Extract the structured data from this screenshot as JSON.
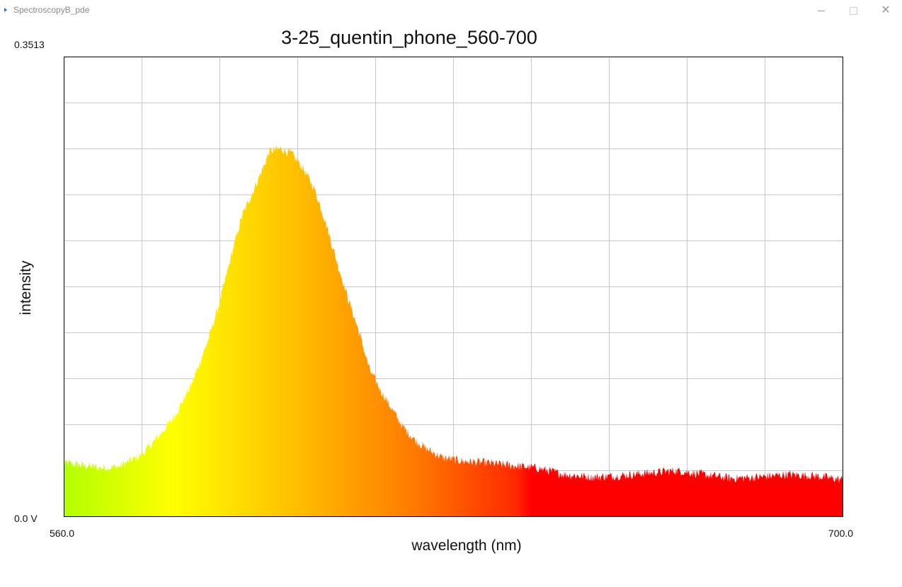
{
  "window": {
    "title": "SpectroscopyB_pde",
    "minimize_glyph": "",
    "maximize_glyph": "",
    "close_glyph": "✕"
  },
  "colors": {
    "grid": "#c8c8c8",
    "frame": "#000000",
    "spectrum_gradient": [
      {
        "at": 0.0,
        "color": "#b3ff00"
      },
      {
        "at": 0.14,
        "color": "#ffff00"
      },
      {
        "at": 0.3,
        "color": "#ffbe00"
      },
      {
        "at": 0.45,
        "color": "#ff7a00"
      },
      {
        "at": 0.58,
        "color": "#ff2a00"
      },
      {
        "at": 0.6,
        "color": "#ff0000"
      },
      {
        "at": 1.0,
        "color": "#ff0000"
      }
    ]
  },
  "chart_data": {
    "type": "area",
    "title": "3-25_quentin_phone_560-700",
    "xlabel": "wavelength (nm)",
    "ylabel": "intensity",
    "x_range": [
      560,
      700
    ],
    "y_range": [
      0,
      0.3513
    ],
    "x_min_label": "560.0",
    "x_max_label": "700.0",
    "y_max_label": "0.3513",
    "y_min_label": "0.0 V",
    "grid": true,
    "x_gridlines": 10,
    "y_gridlines": 10,
    "x": [
      560,
      563,
      567,
      570,
      574,
      576,
      578,
      580,
      583,
      586,
      588,
      590,
      592,
      594,
      596,
      597,
      599,
      601,
      603,
      605,
      607,
      609,
      611,
      613,
      615,
      617,
      619,
      621,
      623,
      625,
      628,
      632,
      636,
      640,
      645,
      650,
      655,
      660,
      665,
      670,
      675,
      680,
      685,
      690,
      695,
      700
    ],
    "values": [
      0.041,
      0.039,
      0.037,
      0.038,
      0.047,
      0.056,
      0.066,
      0.077,
      0.101,
      0.135,
      0.163,
      0.197,
      0.229,
      0.248,
      0.268,
      0.279,
      0.281,
      0.277,
      0.266,
      0.251,
      0.226,
      0.196,
      0.168,
      0.142,
      0.112,
      0.096,
      0.082,
      0.068,
      0.059,
      0.052,
      0.045,
      0.042,
      0.041,
      0.039,
      0.037,
      0.032,
      0.03,
      0.031,
      0.033,
      0.035,
      0.032,
      0.029,
      0.03,
      0.032,
      0.031,
      0.028
    ],
    "noise_amplitude": 0.0035
  }
}
